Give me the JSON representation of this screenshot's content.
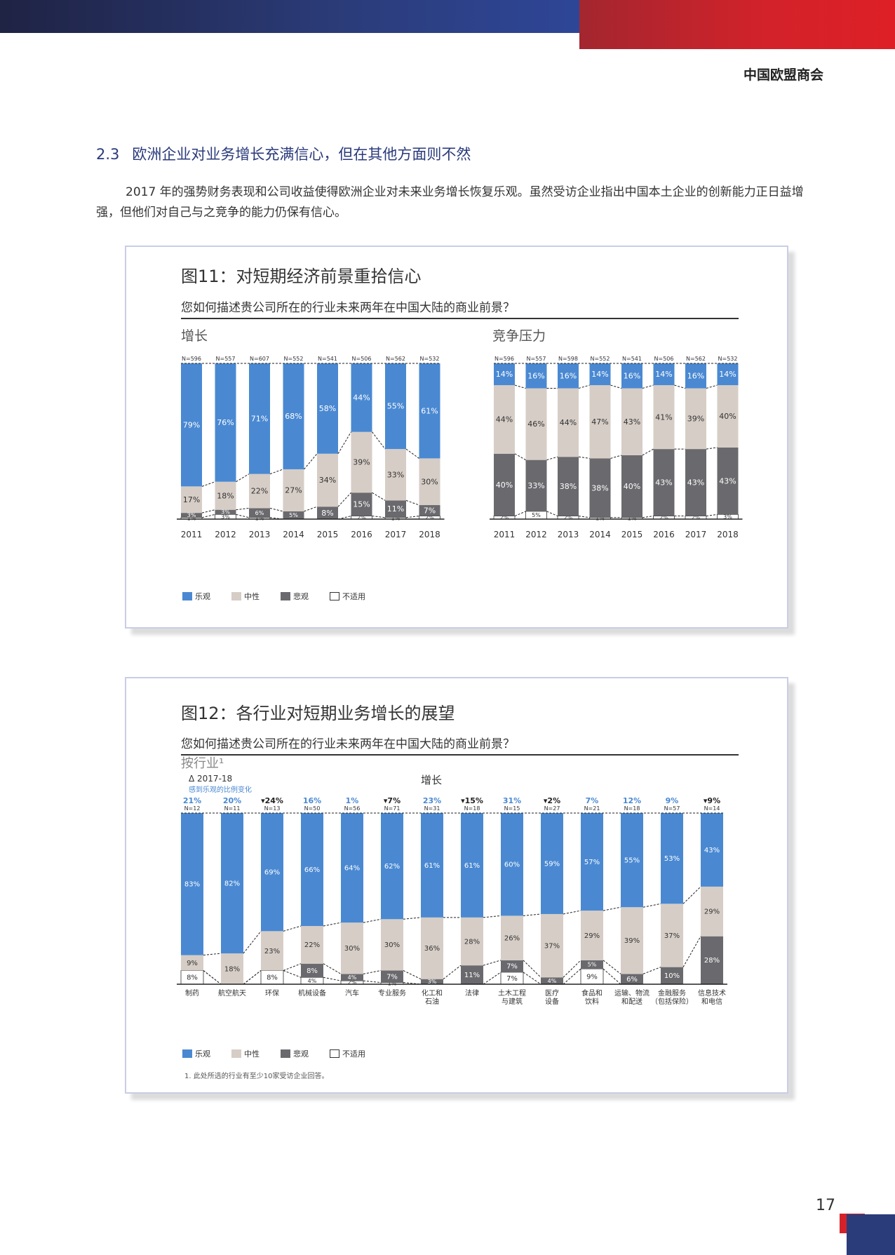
{
  "header": {
    "org": "中国欧盟商会"
  },
  "section": {
    "number": "2.3",
    "title": "欧洲企业对业务增长充满信心，但在其他方面则不然"
  },
  "paragraph": "2017 年的强势财务表现和公司收益使得欧洲企业对未来业务增长恢复乐观。虽然受访企业指出中国本土企业的创新能力正日益增强，但他们对自己与之竞争的能力仍保有信心。",
  "colors": {
    "optimistic": "#4a89d2",
    "neutral": "#d6cdc6",
    "pessimistic": "#6a6a6e",
    "na": "#ffffff"
  },
  "fig11": {
    "title": "图11：对短期经济前景重拾信心",
    "question": "您如何描述贵公司所在的行业未来两年在中国大陆的商业前景？",
    "legend": [
      "乐观",
      "中性",
      "悲观",
      "不适用"
    ]
  },
  "fig12": {
    "title": "图12：各行业对短期业务增长的展望",
    "question": "您如何描述贵公司所在的行业未来两年在中国大陆的商业前景？",
    "by_industry": "按行业¹",
    "delta_label": "Δ 2017-18",
    "delta_sub": "感到乐观的比例变化",
    "legend": [
      "乐观",
      "中性",
      "悲观",
      "不适用"
    ],
    "footnote": "1. 此处所选的行业有至少10家受访企业回答。"
  },
  "page_number": "17",
  "chart_data": [
    {
      "id": "growth",
      "type": "bar",
      "stacked": true,
      "title": "增长",
      "categories": [
        "2011",
        "2012",
        "2013",
        "2014",
        "2015",
        "2016",
        "2017",
        "2018"
      ],
      "n": [
        "N=596",
        "N=557",
        "N=607",
        "N=552",
        "N=541",
        "N=506",
        "N=562",
        "N=532"
      ],
      "series": [
        {
          "name": "不适用",
          "values": [
            1,
            3,
            1,
            0,
            0,
            2,
            1,
            2
          ]
        },
        {
          "name": "悲观",
          "values": [
            3,
            3,
            6,
            5,
            8,
            15,
            11,
            7
          ]
        },
        {
          "name": "中性",
          "values": [
            17,
            18,
            22,
            27,
            34,
            39,
            33,
            30
          ]
        },
        {
          "name": "乐观",
          "values": [
            79,
            76,
            71,
            68,
            58,
            44,
            55,
            61
          ]
        }
      ]
    },
    {
      "id": "competition",
      "type": "bar",
      "stacked": true,
      "title": "竞争压力",
      "categories": [
        "2011",
        "2012",
        "2013",
        "2014",
        "2015",
        "2016",
        "2017",
        "2018"
      ],
      "n": [
        "N=596",
        "N=557",
        "N=598",
        "N=552",
        "N=541",
        "N=506",
        "N=562",
        "N=532"
      ],
      "series": [
        {
          "name": "不适用",
          "values": [
            2,
            5,
            2,
            1,
            1,
            2,
            2,
            3
          ]
        },
        {
          "name": "悲观",
          "values": [
            40,
            33,
            38,
            38,
            40,
            43,
            43,
            43
          ]
        },
        {
          "name": "中性",
          "values": [
            44,
            46,
            44,
            47,
            43,
            41,
            39,
            40
          ]
        },
        {
          "name": "乐观",
          "values": [
            14,
            16,
            16,
            14,
            16,
            14,
            16,
            14
          ]
        }
      ]
    },
    {
      "id": "industry",
      "type": "bar",
      "stacked": true,
      "title": "增长",
      "categories": [
        "制药",
        "航空航天",
        "环保",
        "机械设备",
        "汽车",
        "专业服务",
        "化工和\n石油",
        "法律",
        "土木工程\n与建筑",
        "医疗\n设备",
        "食品和\n饮料",
        "运输、物流\n和配送",
        "金融服务\n（包括保险）",
        "信息技术\n和电信"
      ],
      "n": [
        "N=12",
        "N=11",
        "N=13",
        "N=50",
        "N=56",
        "N=71",
        "N=31",
        "N=18",
        "N=15",
        "N=27",
        "N=21",
        "N=18",
        "N=57",
        "N=14"
      ],
      "delta": [
        "21%",
        "20%",
        "24%",
        "16%",
        "1%",
        "7%",
        "23%",
        "15%",
        "31%",
        "2%",
        "7%",
        "12%",
        "9%",
        "9%"
      ],
      "delta_dir": [
        "up",
        "up",
        "down",
        "up",
        "up",
        "down",
        "up",
        "down",
        "up",
        "down",
        "up",
        "up",
        "up",
        "down"
      ],
      "series": [
        {
          "name": "不适用",
          "values": [
            8,
            0,
            8,
            4,
            2,
            1,
            0,
            0,
            7,
            0,
            9,
            0,
            0,
            0
          ]
        },
        {
          "name": "悲观",
          "values": [
            0,
            0,
            0,
            8,
            4,
            7,
            3,
            11,
            7,
            4,
            5,
            6,
            10,
            28
          ]
        },
        {
          "name": "中性",
          "values": [
            9,
            18,
            23,
            22,
            30,
            30,
            36,
            28,
            26,
            37,
            29,
            39,
            37,
            29
          ]
        },
        {
          "name": "乐观",
          "values": [
            83,
            82,
            69,
            66,
            64,
            62,
            61,
            61,
            60,
            59,
            57,
            55,
            53,
            43
          ]
        }
      ]
    }
  ]
}
